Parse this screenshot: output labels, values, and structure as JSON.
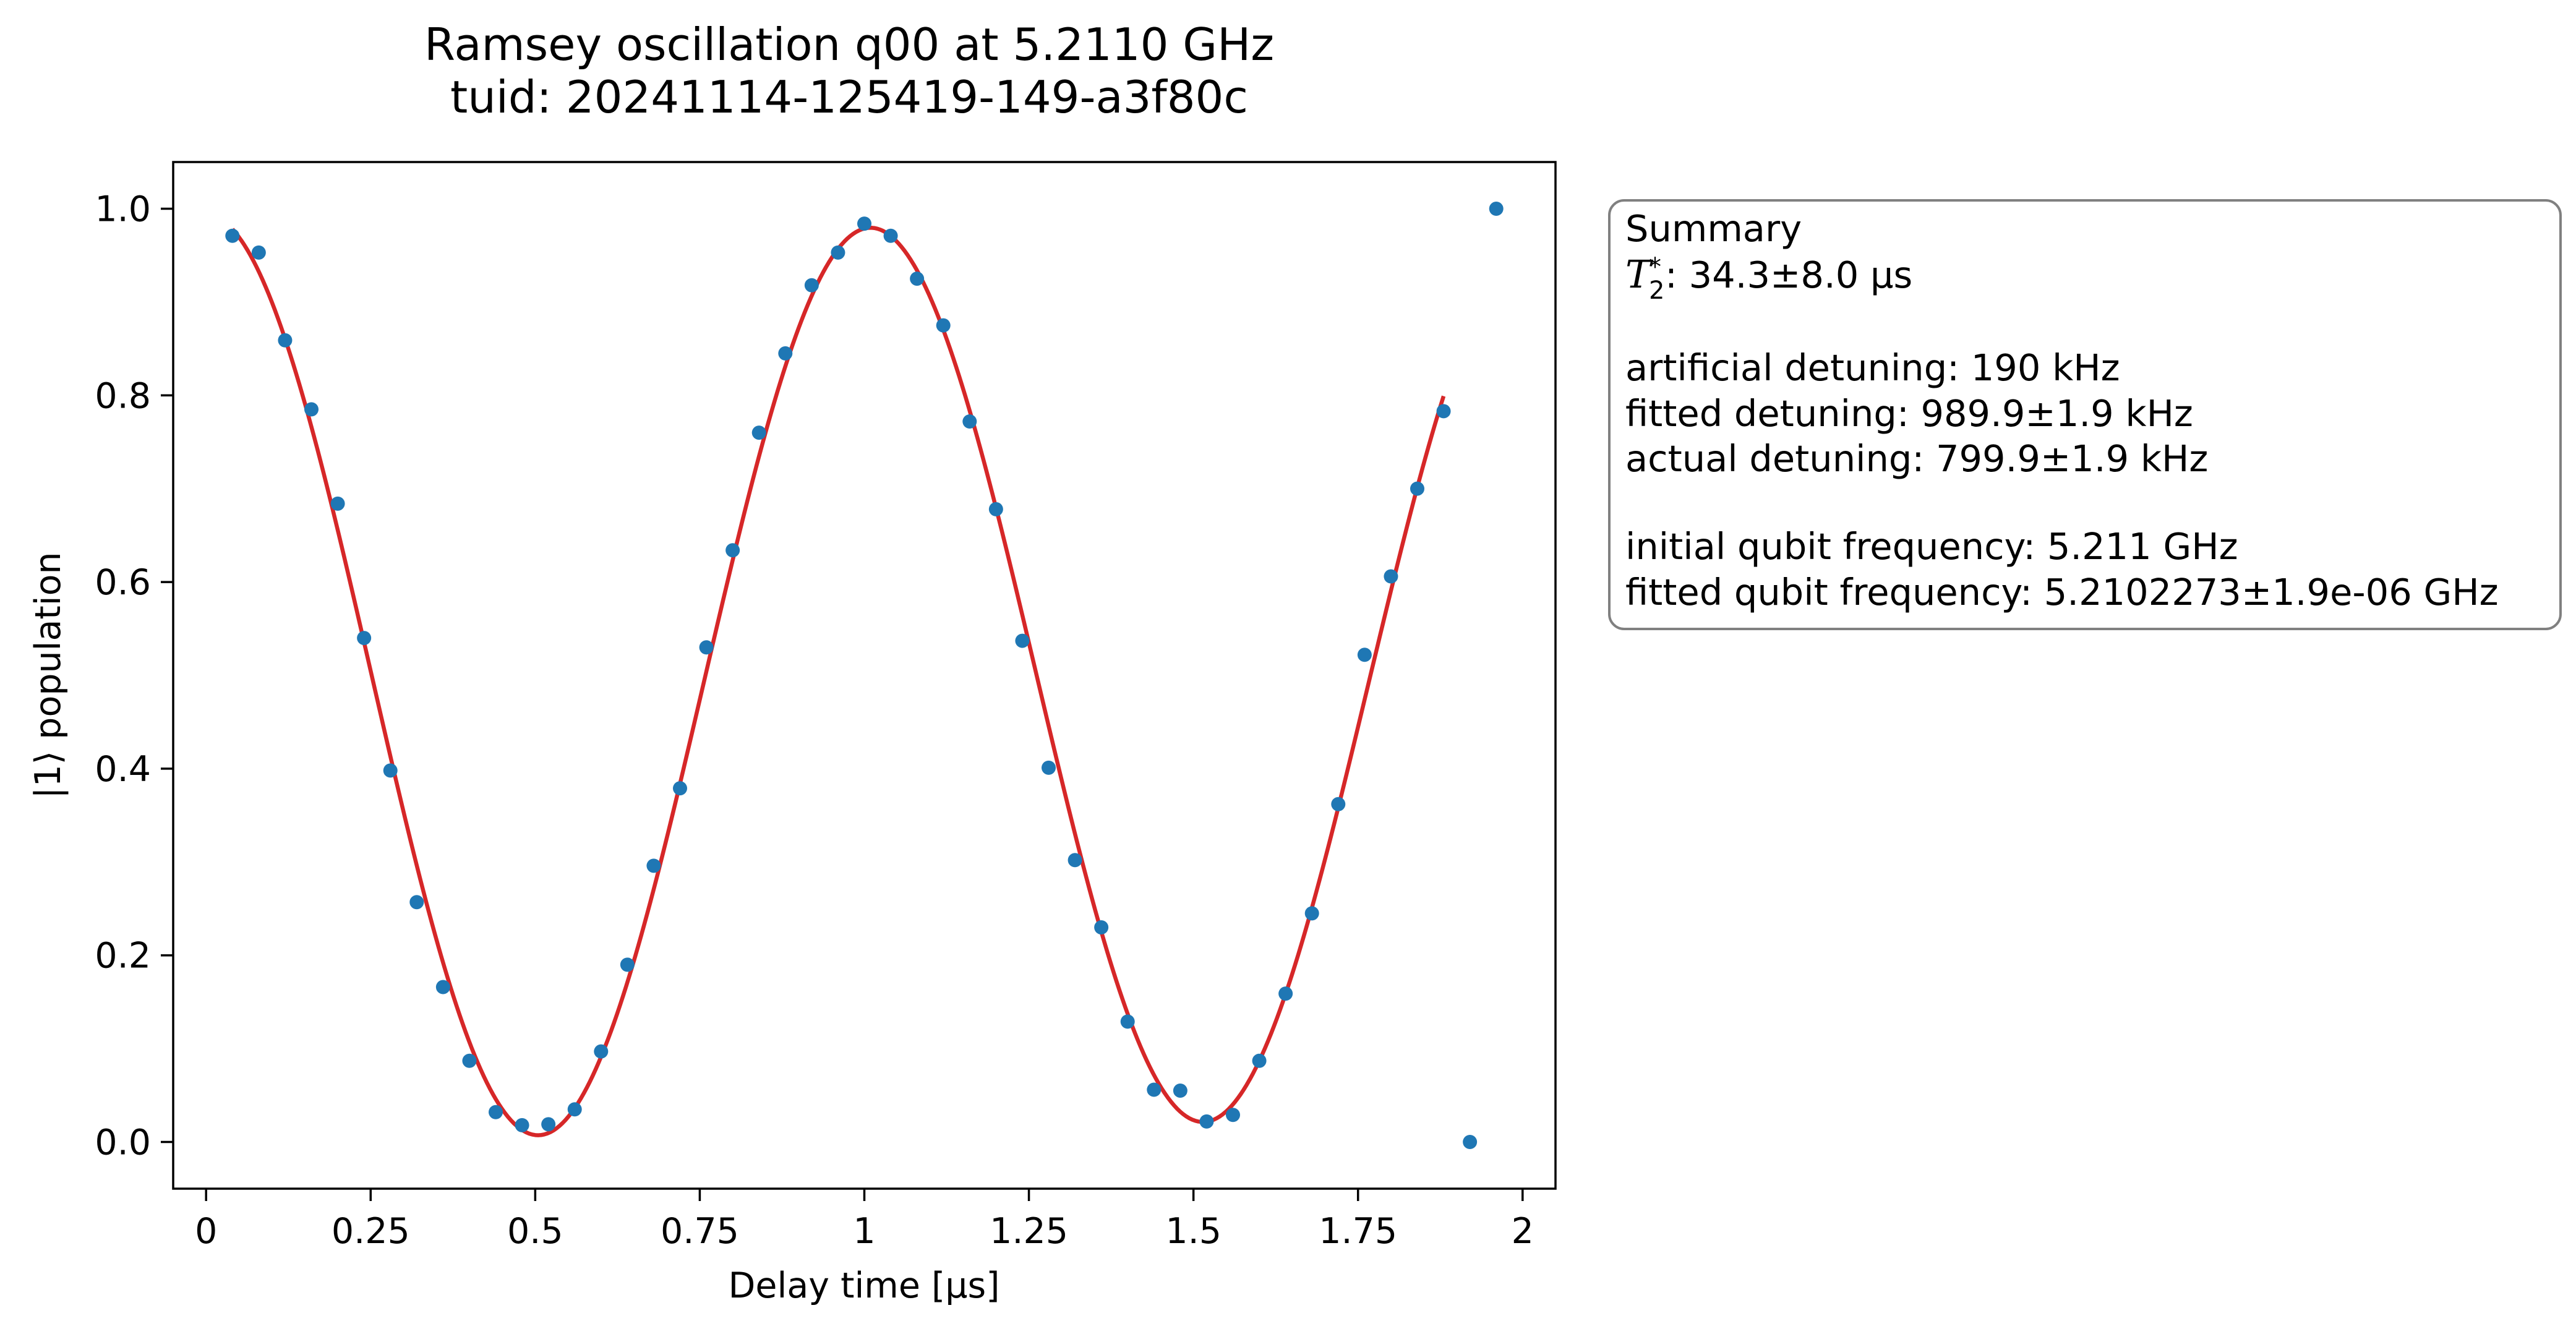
{
  "colors": {
    "data_points": "#1f77b4",
    "fit_line": "#d62728",
    "axes": "#000000",
    "summary_border": "#808080"
  },
  "chart_data": {
    "type": "scatter",
    "title": "Ramsey oscillation q00 at 5.2110 GHz",
    "subtitle": "tuid: 20241114-125419-149-a3f80c",
    "xlabel": "Delay time [µs]",
    "ylabel": "|1⟩ population",
    "xlim": [
      -0.05,
      2.05
    ],
    "ylim": [
      -0.05,
      1.05
    ],
    "xticks": [
      0,
      0.25,
      0.5,
      0.75,
      1,
      1.25,
      1.5,
      1.75,
      2
    ],
    "xtick_labels": [
      "0",
      "0.25",
      "0.5",
      "0.75",
      "1",
      "1.25",
      "1.5",
      "1.75",
      "2"
    ],
    "yticks": [
      0.0,
      0.2,
      0.4,
      0.6,
      0.8,
      1.0
    ],
    "ytick_labels": [
      "0.0",
      "0.2",
      "0.4",
      "0.6",
      "0.8",
      "1.0"
    ],
    "grid": false,
    "legend_placement": "none",
    "series": [
      {
        "kind": "scatter",
        "x": [
          0.04,
          0.08,
          0.12,
          0.16,
          0.2,
          0.24,
          0.28,
          0.32,
          0.36,
          0.4,
          0.44,
          0.48,
          0.52,
          0.56,
          0.6,
          0.64,
          0.68,
          0.72,
          0.76,
          0.8,
          0.84,
          0.88,
          0.92,
          0.96,
          1.0,
          1.04,
          1.08,
          1.12,
          1.16,
          1.2,
          1.24,
          1.28,
          1.32,
          1.36,
          1.4,
          1.44,
          1.48,
          1.52,
          1.56,
          1.6,
          1.64,
          1.68,
          1.72,
          1.76,
          1.8,
          1.84,
          1.88,
          1.92,
          1.96
        ],
        "y": [
          0.971,
          0.953,
          0.859,
          0.785,
          0.684,
          0.54,
          0.398,
          0.257,
          0.166,
          0.087,
          0.032,
          0.018,
          0.019,
          0.035,
          0.097,
          0.19,
          0.296,
          0.379,
          0.53,
          0.634,
          0.76,
          0.845,
          0.918,
          0.953,
          0.984,
          0.971,
          0.925,
          0.875,
          0.772,
          0.678,
          0.537,
          0.401,
          0.302,
          0.23,
          0.129,
          0.056,
          0.055,
          0.022,
          0.029,
          0.087,
          0.159,
          0.245,
          0.362,
          0.522,
          0.606,
          0.7,
          0.783,
          0.0,
          1.0
        ]
      },
      {
        "kind": "fit_line",
        "x_range": [
          0.04,
          1.88
        ],
        "model": "offset + amplitude * exp(-t / T2) * cos(2*pi*f*t + phase)",
        "offset": 0.497,
        "amplitude": 0.497,
        "T2": 34.3,
        "f": 0.9899,
        "phase": 0.0
      }
    ]
  },
  "summary": {
    "heading": "Summary",
    "t2_symbol": "T",
    "t2_subscript": "2",
    "t2_superscript": "*",
    "t2_value": ": 34.3±8.0 µs",
    "artificial_detuning": "artificial detuning: 190 kHz",
    "fitted_detuning": "fitted detuning: 989.9±1.9 kHz",
    "actual_detuning": "actual detuning: 799.9±1.9 kHz",
    "initial_frequency": "initial qubit frequency: 5.211 GHz",
    "fitted_frequency": "fitted qubit frequency: 5.2102273±1.9e-06 GHz"
  }
}
